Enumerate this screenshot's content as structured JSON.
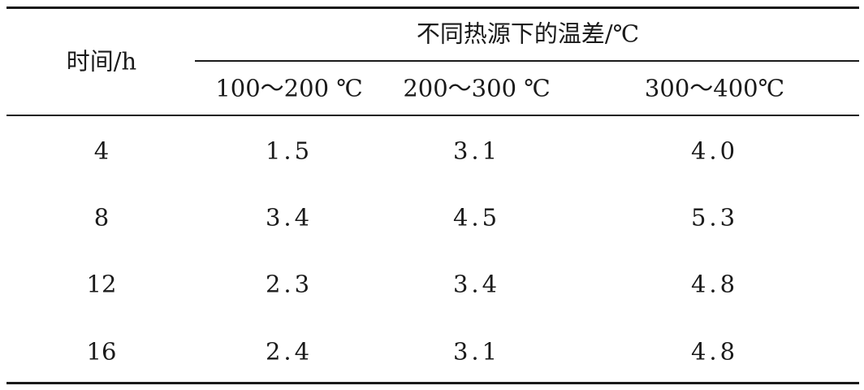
{
  "table": {
    "header": {
      "time_label": "时间/h",
      "group_label": "不同热源下的温差/℃",
      "columns": [
        "100～200 ℃",
        "200～300 ℃",
        "300～400℃"
      ]
    },
    "rows": [
      {
        "time": "4",
        "values": [
          "1.5",
          "3.1",
          "4.0"
        ]
      },
      {
        "time": "8",
        "values": [
          "3.4",
          "4.5",
          "5.3"
        ]
      },
      {
        "time": "12",
        "values": [
          "2.3",
          "3.4",
          "4.8"
        ]
      },
      {
        "time": "16",
        "values": [
          "2.4",
          "3.1",
          "4.8"
        ]
      }
    ]
  }
}
